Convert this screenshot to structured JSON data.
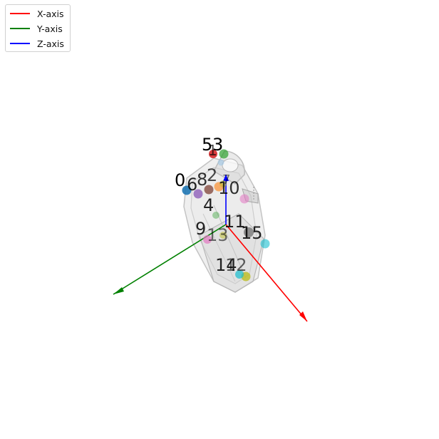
{
  "legend": {
    "items": [
      {
        "label": "X-axis",
        "color": "#ff0000"
      },
      {
        "label": "Y-axis",
        "color": "#008000"
      },
      {
        "label": "Z-axis",
        "color": "#0000ff"
      }
    ]
  },
  "axes": {
    "x_color": "#ff0000",
    "y_color": "#008000",
    "z_color": "#0000ff"
  },
  "keypoints": [
    {
      "label": "0",
      "color": "#1f77b4"
    },
    {
      "label": "1",
      "color": "#ff7f0e"
    },
    {
      "label": "2",
      "color": "#2ca02c"
    },
    {
      "label": "3",
      "color": "#2ca02c"
    },
    {
      "label": "4",
      "color": "#9467bd"
    },
    {
      "label": "5",
      "color": "#d62728"
    },
    {
      "label": "6",
      "color": "#9467bd"
    },
    {
      "label": "7",
      "color": "#8c564b"
    },
    {
      "label": "8",
      "color": "#8c564b"
    },
    {
      "label": "9",
      "color": "#e377c2"
    },
    {
      "label": "10",
      "color": "#e377c2"
    },
    {
      "label": "11",
      "color": "#7f7f7f"
    },
    {
      "label": "12",
      "color": "#bcbd22"
    },
    {
      "label": "13",
      "color": "#bcbd22"
    },
    {
      "label": "14",
      "color": "#17becf"
    },
    {
      "label": "15",
      "color": "#17becf"
    }
  ]
}
